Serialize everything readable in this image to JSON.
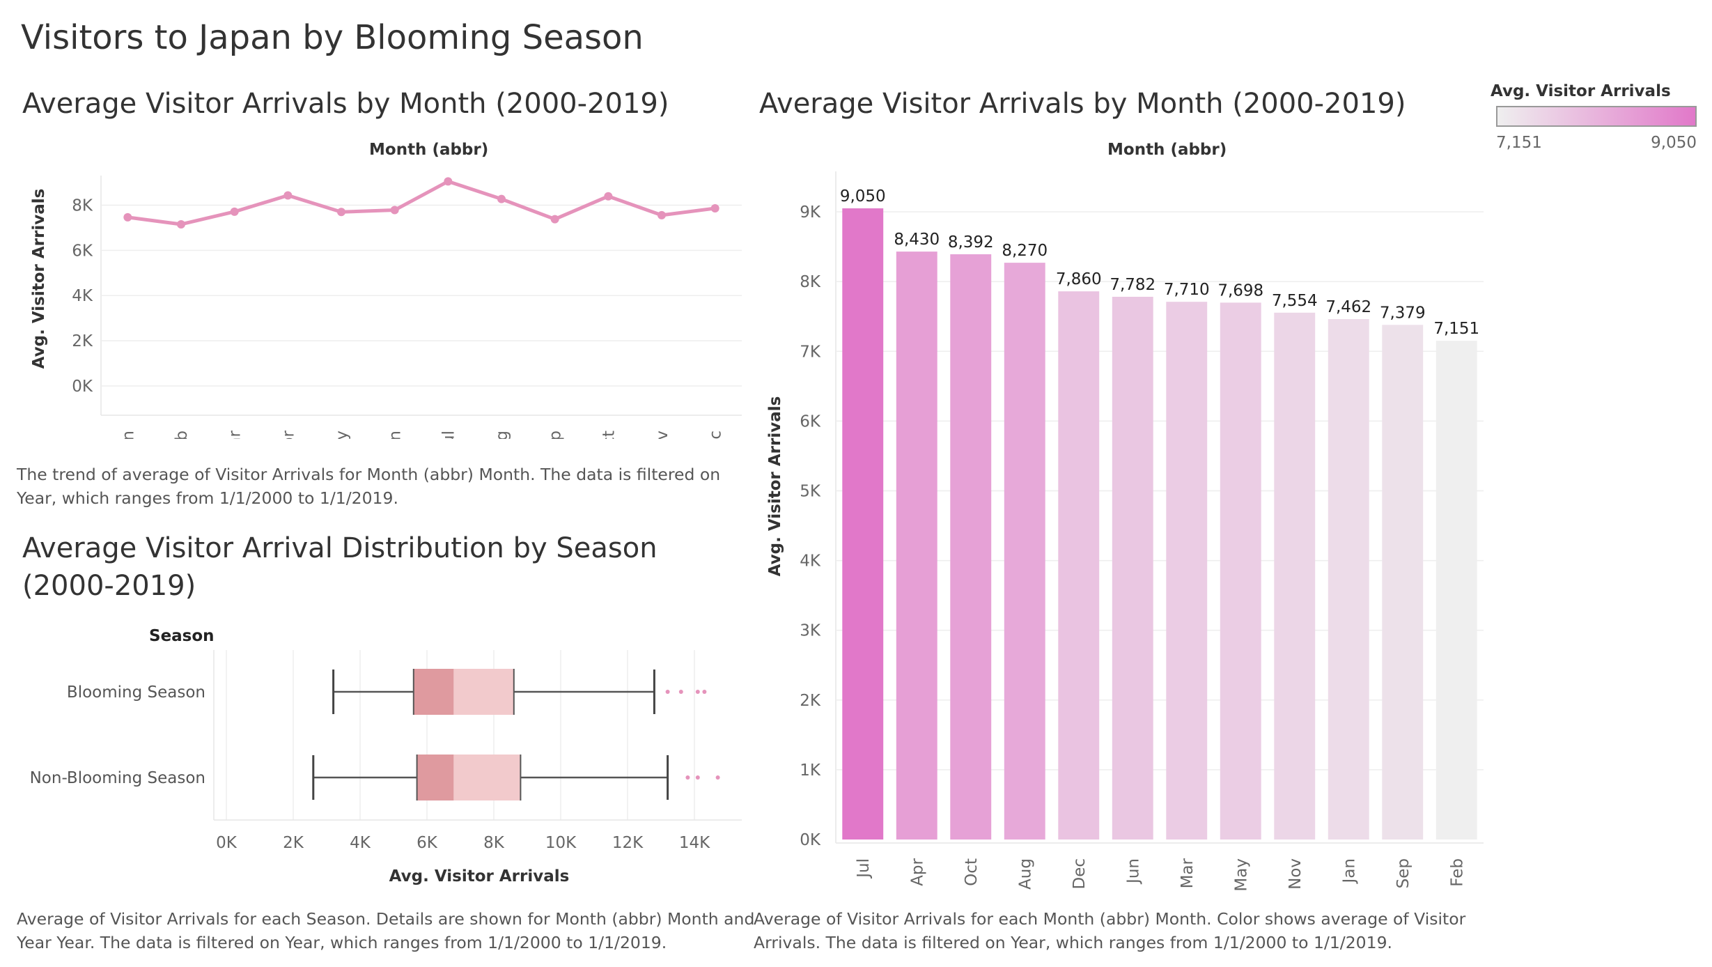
{
  "dashboard_title": "Visitors to Japan by Blooming Season",
  "colors": {
    "line": "#e593bb",
    "box_dark": "#df9a9f",
    "box_light": "#f2cacc",
    "outlier": "#e593bb",
    "bar_high": "#e178c9",
    "bar_low": "#efefef"
  },
  "line_sheet": {
    "title": "Average Visitor Arrivals by Month (2000-2019)",
    "header": "Month (abbr)",
    "ylabel": "Avg. Visitor Arrivals",
    "caption": "The trend of average of Visitor Arrivals for Month (abbr) Month. The data is filtered on Year, which ranges from 1/1/2000 to 1/1/2019."
  },
  "box_sheet": {
    "title_line1": "Average Visitor Arrival Distribution by Season",
    "title_line2": "(2000-2019)",
    "row_header": "Season",
    "xlabel": "Avg. Visitor Arrivals",
    "caption": "Average of Visitor Arrivals for each Season.  Details are shown for Month (abbr) Month and Year Year. The data is filtered on Year, which ranges from 1/1/2000 to 1/1/2019."
  },
  "bar_sheet": {
    "title": "Average Visitor Arrivals by Month (2000-2019)",
    "header": "Month (abbr)",
    "ylabel": "Avg. Visitor Arrivals",
    "caption": "Average of Visitor Arrivals for each Month (abbr) Month.  Color shows average of Visitor Arrivals. The data is filtered on Year, which ranges from 1/1/2000 to 1/1/2019."
  },
  "legend": {
    "title": "Avg. Visitor Arrivals",
    "min_label": "7,151",
    "max_label": "9,050"
  },
  "chart_data": [
    {
      "type": "line",
      "title": "Average Visitor Arrivals by Month (2000-2019)",
      "xlabel": "Month (abbr)",
      "ylabel": "Avg. Visitor Arrivals",
      "categories": [
        "Jan",
        "Feb",
        "Mar",
        "Apr",
        "May",
        "Jun",
        "Jul",
        "Aug",
        "Sep",
        "Oct",
        "Nov",
        "Dec"
      ],
      "values": [
        7462,
        7151,
        7710,
        8430,
        7698,
        7782,
        9050,
        8270,
        7379,
        8392,
        7554,
        7860
      ],
      "y_ticks": [
        0,
        2000,
        4000,
        6000,
        8000
      ],
      "y_tick_labels": [
        "0K",
        "2K",
        "4K",
        "6K",
        "8K"
      ],
      "ylim": [
        0,
        9000
      ]
    },
    {
      "type": "box",
      "title": "Average Visitor Arrival Distribution by Season (2000-2019)",
      "xlabel": "Avg. Visitor Arrivals",
      "ylabel": "Season",
      "categories": [
        "Blooming Season",
        "Non-Blooming Season"
      ],
      "series": [
        {
          "name": "Blooming Season",
          "whisker_low": 3200,
          "q1": 5600,
          "median": 6800,
          "q3": 8600,
          "whisker_high": 12800,
          "outliers": [
            13200,
            13600,
            14100,
            14300
          ]
        },
        {
          "name": "Non-Blooming Season",
          "whisker_low": 2600,
          "q1": 5700,
          "median": 6800,
          "q3": 8800,
          "whisker_high": 13200,
          "outliers": [
            13800,
            14100,
            14700
          ]
        }
      ],
      "x_ticks": [
        0,
        2000,
        4000,
        6000,
        8000,
        10000,
        12000,
        14000
      ],
      "x_tick_labels": [
        "0K",
        "2K",
        "4K",
        "6K",
        "8K",
        "10K",
        "12K",
        "14K"
      ],
      "xlim": [
        0,
        15000
      ]
    },
    {
      "type": "bar",
      "title": "Average Visitor Arrivals by Month (2000-2019)",
      "xlabel": "Month (abbr)",
      "ylabel": "Avg. Visitor Arrivals",
      "categories": [
        "Jul",
        "Apr",
        "Oct",
        "Aug",
        "Dec",
        "Jun",
        "Mar",
        "May",
        "Nov",
        "Jan",
        "Sep",
        "Feb"
      ],
      "values": [
        9050,
        8430,
        8392,
        8270,
        7860,
        7782,
        7710,
        7698,
        7554,
        7462,
        7379,
        7151
      ],
      "value_labels": [
        "9,050",
        "8,430",
        "8,392",
        "8,270",
        "7,860",
        "7,782",
        "7,710",
        "7,698",
        "7,554",
        "7,462",
        "7,379",
        "7,151"
      ],
      "y_ticks": [
        0,
        1000,
        2000,
        3000,
        4000,
        5000,
        6000,
        7000,
        8000,
        9000
      ],
      "y_tick_labels": [
        "0K",
        "1K",
        "2K",
        "3K",
        "4K",
        "5K",
        "6K",
        "7K",
        "8K",
        "9K"
      ],
      "ylim": [
        0,
        9500
      ],
      "color_range": [
        7151,
        9050
      ]
    }
  ]
}
